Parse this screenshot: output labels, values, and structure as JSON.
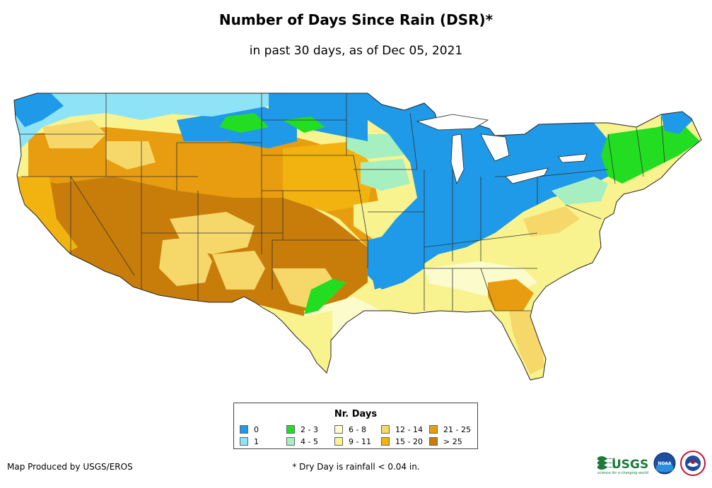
{
  "title": "Number of Days Since Rain (DSR)*",
  "subtitle": "in past 30 days, as of Dec 05, 2021",
  "legend": {
    "title": "Nr. Days",
    "items": [
      {
        "label": "0",
        "color": "#1f9ae8"
      },
      {
        "label": "1",
        "color": "#8fe3f7"
      },
      {
        "label": "2 - 3",
        "color": "#22dd22"
      },
      {
        "label": "4 - 5",
        "color": "#a6efc0"
      },
      {
        "label": "6 - 8",
        "color": "#fbfbcc"
      },
      {
        "label": "9 - 11",
        "color": "#f8f38e"
      },
      {
        "label": "12 - 14",
        "color": "#f6d86a"
      },
      {
        "label": "15 - 20",
        "color": "#f2b310"
      },
      {
        "label": "21 - 25",
        "color": "#e79d0f"
      },
      {
        "label": "> 25",
        "color": "#c87d0b"
      }
    ]
  },
  "footer": {
    "producer": "Map Produced by USGS/EROS",
    "note": "* Dry Day is rainfall < 0.04 in."
  },
  "logos": {
    "usgs_text": "USGS",
    "usgs_tagline": "science for a changing world",
    "noaa_text": "NOAA"
  }
}
